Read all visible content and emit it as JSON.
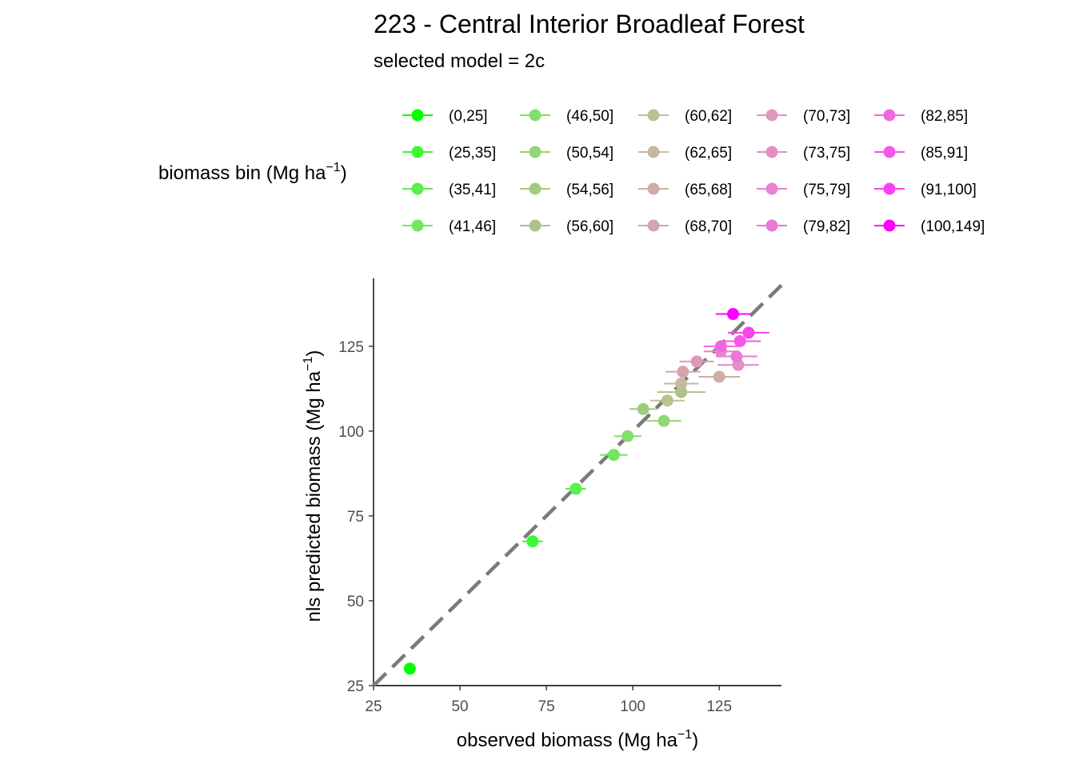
{
  "chart_data": {
    "type": "scatter",
    "title": "223 - Central Interior Broadleaf Forest",
    "subtitle": "selected model = 2c",
    "xlabel": "observed biomass (Mg ha",
    "xlabel_sup": "−1",
    "xlabel_end": ")",
    "ylabel": "nls predicted biomass (Mg ha",
    "ylabel_sup": "−1",
    "ylabel_end": ")",
    "xlim": [
      25,
      143
    ],
    "ylim": [
      25,
      145
    ],
    "x_ticks": [
      25,
      50,
      75,
      100,
      125
    ],
    "y_ticks": [
      25,
      50,
      75,
      100,
      125
    ],
    "reference_line": "1:1 dashed",
    "legend": {
      "title": "biomass bin (Mg ha",
      "title_sup": "−1",
      "title_end": ")",
      "placement": "top",
      "bins": [
        {
          "label": "(0,25]",
          "color": "#00FF00"
        },
        {
          "label": "(25,35]",
          "color": "#3CF732"
        },
        {
          "label": "(35,41]",
          "color": "#5BEF50"
        },
        {
          "label": "(41,46]",
          "color": "#72E65E"
        },
        {
          "label": "(46,50]",
          "color": "#83DE6E"
        },
        {
          "label": "(50,54]",
          "color": "#94D576"
        },
        {
          "label": "(54,56]",
          "color": "#A1CC80"
        },
        {
          "label": "(56,60]",
          "color": "#AEC38A"
        },
        {
          "label": "(60,62]",
          "color": "#BAC293"
        },
        {
          "label": "(62,65]",
          "color": "#C6B99E"
        },
        {
          "label": "(65,68]",
          "color": "#CFAEA7"
        },
        {
          "label": "(68,70]",
          "color": "#D6A4B1"
        },
        {
          "label": "(70,73]",
          "color": "#DC9ABB"
        },
        {
          "label": "(73,75]",
          "color": "#E18FC5"
        },
        {
          "label": "(75,79]",
          "color": "#E684CE"
        },
        {
          "label": "(79,82]",
          "color": "#EB77D7"
        },
        {
          "label": "(82,85]",
          "color": "#F068E0"
        },
        {
          "label": "(85,91]",
          "color": "#F458E8"
        },
        {
          "label": "(91,100]",
          "color": "#F942F0"
        },
        {
          "label": "(100,149]",
          "color": "#FF00FF"
        }
      ]
    },
    "points": [
      {
        "bin": 0,
        "x": 35.5,
        "y": 30.0,
        "xerr": 1.5
      },
      {
        "bin": 1,
        "x": 71.0,
        "y": 67.5,
        "xerr": 3.0
      },
      {
        "bin": 2,
        "x": 83.5,
        "y": 83.0,
        "xerr": 3.0
      },
      {
        "bin": 3,
        "x": 94.5,
        "y": 93.0,
        "xerr": 4.0
      },
      {
        "bin": 4,
        "x": 98.5,
        "y": 98.5,
        "xerr": 4.0
      },
      {
        "bin": 5,
        "x": 109.0,
        "y": 103.0,
        "xerr": 5.0
      },
      {
        "bin": 6,
        "x": 103.0,
        "y": 106.5,
        "xerr": 4.0
      },
      {
        "bin": 7,
        "x": 114.0,
        "y": 111.5,
        "xerr": 7.0
      },
      {
        "bin": 8,
        "x": 110.0,
        "y": 109.0,
        "xerr": 5.0
      },
      {
        "bin": 9,
        "x": 114.0,
        "y": 114.0,
        "xerr": 5.0
      },
      {
        "bin": 10,
        "x": 125.0,
        "y": 116.0,
        "xerr": 6.0
      },
      {
        "bin": 11,
        "x": 114.5,
        "y": 117.5,
        "xerr": 5.0
      },
      {
        "bin": 12,
        "x": 118.5,
        "y": 120.5,
        "xerr": 5.0
      },
      {
        "bin": 13,
        "x": 130.5,
        "y": 119.5,
        "xerr": 6.0
      },
      {
        "bin": 14,
        "x": 125.5,
        "y": 123.5,
        "xerr": 5.0
      },
      {
        "bin": 15,
        "x": 130.0,
        "y": 122.0,
        "xerr": 6.0
      },
      {
        "bin": 16,
        "x": 125.5,
        "y": 125.0,
        "xerr": 5.0
      },
      {
        "bin": 17,
        "x": 131.0,
        "y": 126.5,
        "xerr": 6.0
      },
      {
        "bin": 18,
        "x": 133.5,
        "y": 129.0,
        "xerr": 6.0
      },
      {
        "bin": 19,
        "x": 129.0,
        "y": 134.5,
        "xerr": 5.0
      }
    ]
  }
}
